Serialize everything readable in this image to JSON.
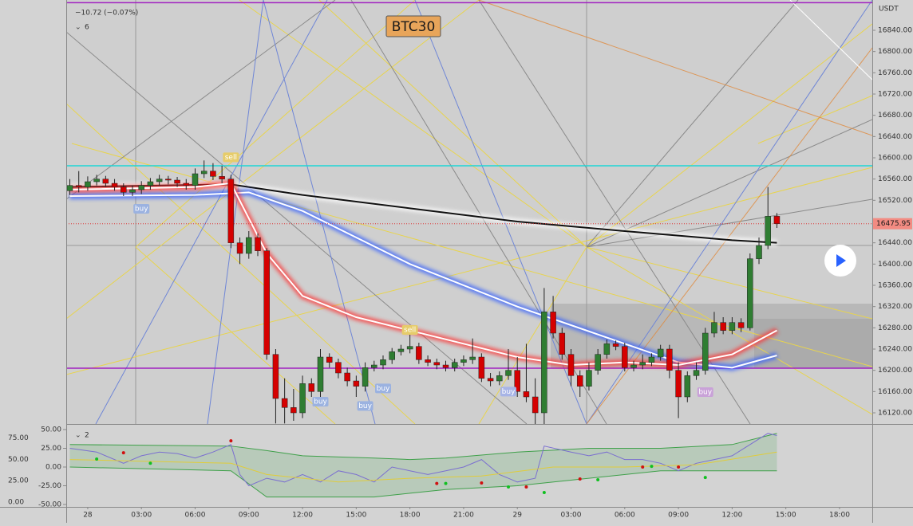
{
  "chart_data": {
    "type": "candlestick",
    "title": "BTC30",
    "change_text": "−10.72 (−0.07%)",
    "main_indicator_count": "6",
    "osc_indicator_count": "2",
    "currency": "USDT",
    "last_price": 16475.95,
    "up_color": "#2f7d32",
    "down_color": "#d50000",
    "xlim": [
      -1.2,
      43.83
    ],
    "xticks": [
      {
        "value": 0,
        "label": "28"
      },
      {
        "value": 3,
        "label": "03:00"
      },
      {
        "value": 6,
        "label": "06:00"
      },
      {
        "value": 9,
        "label": "09:00"
      },
      {
        "value": 12,
        "label": "12:00"
      },
      {
        "value": 15,
        "label": "15:00"
      },
      {
        "value": 18,
        "label": "18:00"
      },
      {
        "value": 21,
        "label": "21:00"
      },
      {
        "value": 24,
        "label": "29"
      },
      {
        "value": 27,
        "label": "03:00"
      },
      {
        "value": 30,
        "label": "06:00"
      },
      {
        "value": 33,
        "label": "09:00"
      },
      {
        "value": 36,
        "label": "12:00"
      },
      {
        "value": 39,
        "label": "15:00"
      },
      {
        "value": 42,
        "label": "18:00"
      }
    ],
    "ylim": [
      16099,
      16897
    ],
    "yticks": [
      {
        "value": 16120,
        "label": "16120.00"
      },
      {
        "value": 16160,
        "label": "16160.00"
      },
      {
        "value": 16200,
        "label": "16200.00"
      },
      {
        "value": 16240,
        "label": "16240.00"
      },
      {
        "value": 16280,
        "label": "16280.00"
      },
      {
        "value": 16320,
        "label": "16320.00"
      },
      {
        "value": 16360,
        "label": "16360.00"
      },
      {
        "value": 16400,
        "label": "16400.00"
      },
      {
        "value": 16440,
        "label": "16440.00"
      },
      {
        "value": 16480,
        "label": "16480.00"
      },
      {
        "value": 16520,
        "label": "16520.00"
      },
      {
        "value": 16560,
        "label": "16560.00"
      },
      {
        "value": 16600,
        "label": "16600.00"
      },
      {
        "value": 16640,
        "label": "16640.00"
      },
      {
        "value": 16680,
        "label": "16680.00"
      },
      {
        "value": 16720,
        "label": "16720.00"
      },
      {
        "value": 16760,
        "label": "16760.00"
      },
      {
        "value": 16800,
        "label": "16800.00"
      },
      {
        "value": 16840,
        "label": "16840.00"
      }
    ],
    "candles": {
      "x": [
        -1,
        -0.5,
        0,
        0.5,
        1,
        1.5,
        2,
        2.5,
        3,
        3.5,
        4,
        4.5,
        5,
        5.5,
        6,
        6.5,
        7,
        7.5,
        8,
        8.5,
        9,
        9.5,
        10,
        10.5,
        11,
        11.5,
        12,
        12.5,
        13,
        13.5,
        14,
        14.5,
        15,
        15.5,
        16,
        16.5,
        17,
        17.5,
        18,
        18.5,
        19,
        19.5,
        20,
        20.5,
        21,
        21.5,
        22,
        22.5,
        23,
        23.5,
        24,
        24.5,
        25,
        25.5,
        26,
        26.5,
        27,
        27.5,
        28,
        28.5,
        29,
        29.5,
        30,
        30.5,
        31,
        31.5,
        32,
        32.5,
        33,
        33.5,
        34,
        34.5,
        35,
        35.5,
        36,
        36.5,
        37,
        37.5,
        38,
        38.5
      ],
      "open": [
        16538,
        16548,
        16545,
        16555,
        16560,
        16552,
        16545,
        16535,
        16540,
        16548,
        16555,
        16560,
        16558,
        16552,
        16548,
        16570,
        16575,
        16565,
        16560,
        16440,
        16420,
        16450,
        16425,
        16230,
        16147,
        16130,
        16120,
        16175,
        16160,
        16225,
        16215,
        16195,
        16180,
        16170,
        16205,
        16210,
        16220,
        16235,
        16240,
        16245,
        16220,
        16215,
        16210,
        16205,
        16215,
        16220,
        16225,
        16185,
        16180,
        16190,
        16200,
        16160,
        16150,
        16120,
        16310,
        16270,
        16230,
        16190,
        16170,
        16200,
        16230,
        16250,
        16245,
        16205,
        16210,
        16215,
        16225,
        16240,
        16200,
        16150,
        16190,
        16200,
        16270,
        16290,
        16275,
        16290,
        16280,
        16410,
        16435,
        16490
      ],
      "high": [
        16560,
        16575,
        16565,
        16568,
        16566,
        16560,
        16552,
        16548,
        16556,
        16562,
        16568,
        16566,
        16564,
        16560,
        16580,
        16595,
        16590,
        16585,
        16568,
        16450,
        16462,
        16458,
        16430,
        16240,
        16185,
        16165,
        16190,
        16185,
        16240,
        16232,
        16222,
        16205,
        16190,
        16215,
        16218,
        16228,
        16242,
        16248,
        16272,
        16252,
        16228,
        16222,
        16218,
        16222,
        16228,
        16260,
        16232,
        16195,
        16198,
        16240,
        16225,
        16250,
        16185,
        16355,
        16340,
        16280,
        16240,
        16200,
        16215,
        16240,
        16258,
        16256,
        16252,
        16218,
        16230,
        16232,
        16248,
        16248,
        16215,
        16198,
        16215,
        16280,
        16310,
        16300,
        16300,
        16298,
        16420,
        16450,
        16545,
        16496
      ],
      "low": [
        16530,
        16535,
        16538,
        16548,
        16545,
        16538,
        16528,
        16528,
        16532,
        16540,
        16548,
        16550,
        16545,
        16540,
        16540,
        16562,
        16558,
        16552,
        16430,
        16400,
        16410,
        16415,
        16220,
        16100,
        16100,
        16105,
        16110,
        16150,
        16150,
        16205,
        16185,
        16170,
        16150,
        16160,
        16198,
        16202,
        16212,
        16228,
        16232,
        16212,
        16208,
        16202,
        16198,
        16198,
        16208,
        16212,
        16178,
        16170,
        16172,
        16182,
        16150,
        16140,
        16095,
        16095,
        16260,
        16220,
        16170,
        16150,
        16162,
        16192,
        16222,
        16238,
        16198,
        16198,
        16202,
        16208,
        16218,
        16185,
        16110,
        16140,
        16182,
        16192,
        16262,
        16268,
        16268,
        16272,
        16275,
        16400,
        16428,
        16468
      ],
      "close": [
        16548,
        16545,
        16555,
        16560,
        16552,
        16545,
        16535,
        16540,
        16548,
        16555,
        16560,
        16558,
        16552,
        16548,
        16570,
        16575,
        16565,
        16560,
        16440,
        16420,
        16450,
        16425,
        16230,
        16147,
        16130,
        16120,
        16175,
        16160,
        16225,
        16215,
        16195,
        16180,
        16170,
        16205,
        16210,
        16220,
        16235,
        16240,
        16245,
        16220,
        16215,
        16210,
        16205,
        16215,
        16220,
        16225,
        16185,
        16180,
        16190,
        16200,
        16160,
        16150,
        16120,
        16310,
        16270,
        16230,
        16190,
        16170,
        16200,
        16230,
        16250,
        16245,
        16205,
        16210,
        16215,
        16225,
        16240,
        16200,
        16150,
        16190,
        16200,
        16270,
        16290,
        16275,
        16290,
        16280,
        16410,
        16435,
        16490,
        16476
      ]
    },
    "moving_averages": [
      {
        "color": "#111111",
        "glow": "#ffffff",
        "x": [
          -1,
          8,
          12,
          18,
          24,
          30,
          36,
          38.5
        ],
        "values": [
          16545,
          16550,
          16530,
          16505,
          16480,
          16462,
          16445,
          16440
        ]
      },
      {
        "color": "#ffffff",
        "glow": "#2f5bff",
        "x": [
          -1,
          6,
          9,
          12,
          18,
          24,
          27,
          30,
          33,
          36,
          38.5
        ],
        "values": [
          16528,
          16530,
          16535,
          16500,
          16400,
          16320,
          16285,
          16250,
          16215,
          16205,
          16228
        ]
      },
      {
        "color": "#ffffff",
        "glow": "#ff2d2d",
        "x": [
          -1,
          6,
          8,
          10,
          12,
          15,
          18,
          21,
          24,
          27,
          30,
          33,
          36,
          38.5
        ],
        "values": [
          16540,
          16545,
          16552,
          16420,
          16340,
          16300,
          16275,
          16250,
          16225,
          16210,
          16215,
          16210,
          16230,
          16275
        ]
      }
    ],
    "hlines": [
      {
        "value": 16585,
        "color": "#1ed6d6"
      },
      {
        "value": 16204,
        "color": "#a020c0"
      },
      {
        "value": 16892,
        "color": "#a020c0"
      }
    ],
    "annotations": [
      {
        "text": "buy",
        "x": 3,
        "y": 16504,
        "color": "#9bb2e0"
      },
      {
        "text": "sell",
        "x": 8,
        "y": 16601,
        "color": "#e6cc6a"
      },
      {
        "text": "buy",
        "x": 13,
        "y": 16141,
        "color": "#9bb2e0"
      },
      {
        "text": "buy",
        "x": 15.5,
        "y": 16133,
        "color": "#9bb2e0"
      },
      {
        "text": "buy",
        "x": 16.5,
        "y": 16166,
        "color": "#9bb2e0"
      },
      {
        "text": "sell",
        "x": 18,
        "y": 16276,
        "color": "#e6cc6a"
      },
      {
        "text": "buy",
        "x": 23.5,
        "y": 16160,
        "color": "#a7b4e6"
      },
      {
        "text": "buy",
        "x": 34.5,
        "y": 16159,
        "color": "#c9a2d8"
      }
    ],
    "oscillator": {
      "ylim": [
        -53.2,
        56.4
      ],
      "yticks": [
        {
          "value": 50,
          "label": "50.00"
        },
        {
          "value": 25,
          "label": "25.00"
        },
        {
          "value": 0,
          "label": "0.00"
        },
        {
          "value": -25,
          "label": "-25.00"
        },
        {
          "value": -50,
          "label": "-50.00"
        }
      ],
      "y2lim": [
        -5.5,
        90.2
      ],
      "y2ticks": [
        {
          "value": 75,
          "label": "75.00"
        },
        {
          "value": 50,
          "label": "50.00"
        },
        {
          "value": 25,
          "label": "25.00"
        },
        {
          "value": 0,
          "label": "0.00"
        }
      ],
      "band": {
        "color": "#3fa04a",
        "x": [
          -1,
          8,
          10,
          12,
          16,
          18,
          20,
          24,
          28,
          32,
          36,
          38.5
        ],
        "upper": [
          30,
          28,
          22,
          15,
          12,
          10,
          12,
          20,
          25,
          25,
          30,
          45
        ],
        "lower": [
          0,
          -5,
          -40,
          -40,
          -40,
          -35,
          -30,
          -25,
          -15,
          -5,
          -5,
          -5
        ]
      },
      "lines": [
        {
          "color": "#7b6fd0",
          "x": [
            -1,
            0.5,
            2,
            3,
            4,
            5,
            6,
            7,
            8,
            8.5,
            9,
            10,
            11,
            12,
            13,
            14,
            15,
            16,
            17,
            18,
            19,
            20,
            21,
            22,
            23,
            24,
            25,
            25.5,
            27,
            28,
            29,
            30,
            31,
            32,
            33,
            34,
            35,
            36,
            37,
            38,
            38.5
          ],
          "values": [
            25,
            20,
            5,
            15,
            20,
            18,
            12,
            20,
            30,
            -10,
            -25,
            -15,
            -20,
            -10,
            -20,
            -5,
            -10,
            -20,
            0,
            -5,
            -10,
            -5,
            0,
            10,
            -10,
            -20,
            -15,
            28,
            20,
            15,
            20,
            10,
            10,
            5,
            -5,
            5,
            10,
            15,
            30,
            45,
            42
          ]
        },
        {
          "color": "#e0cc3a",
          "x": [
            -1,
            8,
            10,
            14,
            18,
            22,
            26,
            30,
            34,
            38.5
          ],
          "values": [
            10,
            5,
            -10,
            -20,
            -15,
            -12,
            0,
            0,
            3,
            20
          ]
        }
      ],
      "dots": [
        {
          "color": "#d01010",
          "x": [
            2,
            8,
            19.5,
            22,
            24.5,
            27.5,
            31,
            33
          ],
          "values": [
            19,
            35,
            -22,
            -21.3,
            -26.6,
            -16,
            0,
            0
          ]
        },
        {
          "color": "#10c020",
          "x": [
            0.5,
            3.5,
            20,
            23.5,
            25.5,
            28.5,
            31.5,
            34.5
          ],
          "values": [
            10.6,
            5,
            -22,
            -26.6,
            -34,
            -17,
            1,
            -14
          ]
        }
      ]
    }
  }
}
